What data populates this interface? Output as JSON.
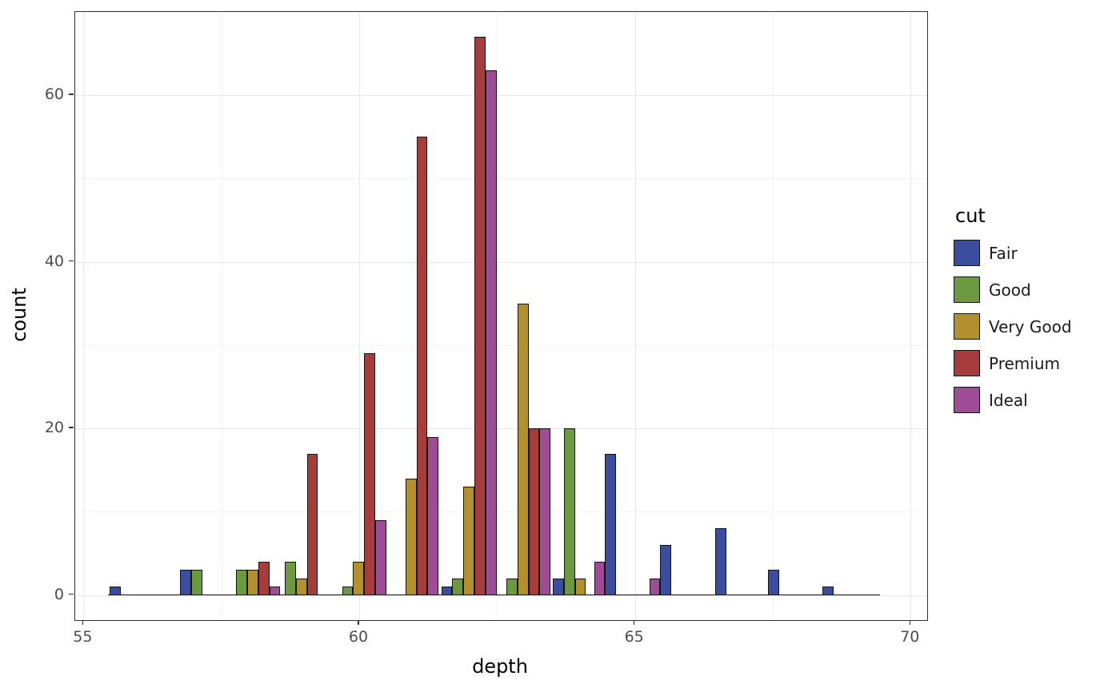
{
  "chart_data": {
    "type": "bar",
    "title": "",
    "xlabel": "depth",
    "ylabel": "count",
    "legend_title": "cut",
    "legend_position": "right",
    "grid": true,
    "x_range": [
      54.85,
      70.3
    ],
    "y_range": [
      -3,
      70
    ],
    "x_ticks": [
      55,
      60,
      65,
      70
    ],
    "y_ticks": [
      0,
      20,
      40,
      60
    ],
    "x_minor": [
      57.5,
      62.5,
      67.5
    ],
    "y_minor": [
      10,
      30,
      50
    ],
    "bar_width": 0.2,
    "baseline": {
      "from": 55.45,
      "to": 69.45
    },
    "series": [
      {
        "name": "Fair",
        "color": "#3a4d9f"
      },
      {
        "name": "Good",
        "color": "#6d9a41"
      },
      {
        "name": "Very Good",
        "color": "#b2902e"
      },
      {
        "name": "Premium",
        "color": "#a63c3c"
      },
      {
        "name": "Ideal",
        "color": "#9e4c96"
      }
    ],
    "bars": [
      {
        "x": 55.58,
        "series": "Fair",
        "count": 1
      },
      {
        "x": 56.85,
        "series": "Fair",
        "count": 3
      },
      {
        "x": 57.05,
        "series": "Good",
        "count": 3
      },
      {
        "x": 57.87,
        "series": "Good",
        "count": 3
      },
      {
        "x": 58.07,
        "series": "Very Good",
        "count": 3
      },
      {
        "x": 58.27,
        "series": "Premium",
        "count": 4
      },
      {
        "x": 58.47,
        "series": "Ideal",
        "count": 1
      },
      {
        "x": 58.75,
        "series": "Good",
        "count": 4
      },
      {
        "x": 58.95,
        "series": "Very Good",
        "count": 2
      },
      {
        "x": 59.15,
        "series": "Premium",
        "count": 17
      },
      {
        "x": 59.79,
        "series": "Good",
        "count": 1
      },
      {
        "x": 59.99,
        "series": "Very Good",
        "count": 4
      },
      {
        "x": 60.19,
        "series": "Premium",
        "count": 29
      },
      {
        "x": 60.39,
        "series": "Ideal",
        "count": 9
      },
      {
        "x": 60.94,
        "series": "Very Good",
        "count": 14
      },
      {
        "x": 61.14,
        "series": "Premium",
        "count": 55
      },
      {
        "x": 61.34,
        "series": "Ideal",
        "count": 19
      },
      {
        "x": 61.59,
        "series": "Fair",
        "count": 1
      },
      {
        "x": 61.79,
        "series": "Good",
        "count": 2
      },
      {
        "x": 61.99,
        "series": "Very Good",
        "count": 13
      },
      {
        "x": 62.19,
        "series": "Premium",
        "count": 67
      },
      {
        "x": 62.39,
        "series": "Ideal",
        "count": 63
      },
      {
        "x": 62.77,
        "series": "Good",
        "count": 2
      },
      {
        "x": 62.97,
        "series": "Very Good",
        "count": 35
      },
      {
        "x": 63.17,
        "series": "Premium",
        "count": 20
      },
      {
        "x": 63.37,
        "series": "Ideal",
        "count": 20
      },
      {
        "x": 63.61,
        "series": "Fair",
        "count": 2
      },
      {
        "x": 63.81,
        "series": "Good",
        "count": 20
      },
      {
        "x": 64.01,
        "series": "Very Good",
        "count": 2
      },
      {
        "x": 64.36,
        "series": "Ideal",
        "count": 4
      },
      {
        "x": 64.56,
        "series": "Fair",
        "count": 17
      },
      {
        "x": 65.36,
        "series": "Ideal",
        "count": 2
      },
      {
        "x": 65.56,
        "series": "Fair",
        "count": 6
      },
      {
        "x": 66.56,
        "series": "Fair",
        "count": 8
      },
      {
        "x": 67.51,
        "series": "Fair",
        "count": 3
      },
      {
        "x": 68.5,
        "series": "Fair",
        "count": 1
      }
    ]
  }
}
